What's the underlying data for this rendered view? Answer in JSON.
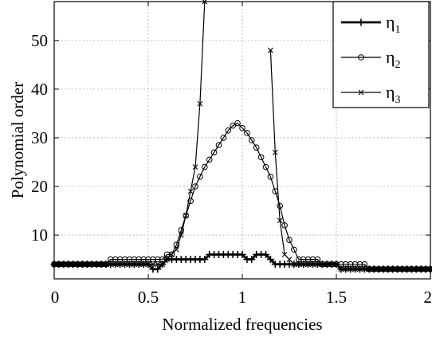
{
  "chart_data": {
    "type": "line",
    "xlabel": "Normalized frequencies",
    "ylabel": "Polynomial order",
    "xlim": [
      0,
      2
    ],
    "ylim": [
      1,
      58
    ],
    "xticks": [
      "0",
      "0.5",
      "1",
      "1.5",
      "2"
    ],
    "yticks": [
      "10",
      "20",
      "30",
      "40",
      "50"
    ],
    "xtick_values": [
      0,
      0.5,
      1,
      1.5,
      2
    ],
    "ytick_values": [
      10,
      20,
      30,
      40,
      50
    ],
    "grid": true,
    "legend_position": "top-right",
    "legend": [
      {
        "base": "η",
        "sub": "1"
      },
      {
        "base": "η",
        "sub": "2"
      },
      {
        "base": "η",
        "sub": "3"
      }
    ],
    "series": [
      {
        "id": "eta1",
        "marker": "plus",
        "line_width": 2.8,
        "x": [
          0,
          0.025,
          0.05,
          0.075,
          0.1,
          0.125,
          0.15,
          0.175,
          0.2,
          0.225,
          0.25,
          0.275,
          0.3,
          0.325,
          0.35,
          0.375,
          0.4,
          0.425,
          0.45,
          0.475,
          0.5,
          0.525,
          0.55,
          0.575,
          0.6,
          0.625,
          0.65,
          0.675,
          0.7,
          0.725,
          0.75,
          0.775,
          0.8,
          0.825,
          0.85,
          0.875,
          0.9,
          0.925,
          0.95,
          0.975,
          1.0,
          1.025,
          1.05,
          1.075,
          1.1,
          1.125,
          1.15,
          1.175,
          1.2,
          1.225,
          1.25,
          1.275,
          1.3,
          1.325,
          1.35,
          1.375,
          1.4,
          1.425,
          1.45,
          1.475,
          1.5,
          1.525,
          1.55,
          1.575,
          1.6,
          1.625,
          1.65,
          1.675,
          1.7,
          1.725,
          1.75,
          1.775,
          1.8,
          1.825,
          1.85,
          1.875,
          1.9,
          1.925,
          1.95,
          1.975,
          2.0
        ],
        "y": [
          4,
          4,
          4,
          4,
          4,
          4,
          4,
          4,
          4,
          4,
          4,
          4,
          4,
          4,
          4,
          4,
          4,
          4,
          4,
          4,
          4,
          3,
          3,
          4,
          5,
          5,
          5,
          5,
          5,
          5,
          5,
          5,
          5,
          6,
          6,
          6,
          6,
          6,
          6,
          6,
          6,
          5,
          5,
          6,
          6,
          6,
          5,
          4,
          4,
          4,
          4,
          4,
          4,
          4,
          4,
          4,
          4,
          4,
          4,
          4,
          4,
          3,
          3,
          3,
          3,
          3,
          3,
          3,
          3,
          3,
          3,
          3,
          3,
          3,
          3,
          3,
          3,
          3,
          3,
          3,
          3
        ]
      },
      {
        "id": "eta2",
        "marker": "circle",
        "line_width": 1.2,
        "x": [
          0,
          0.025,
          0.05,
          0.075,
          0.1,
          0.125,
          0.15,
          0.175,
          0.2,
          0.225,
          0.25,
          0.275,
          0.3,
          0.325,
          0.35,
          0.375,
          0.4,
          0.425,
          0.45,
          0.475,
          0.5,
          0.525,
          0.55,
          0.575,
          0.6,
          0.625,
          0.65,
          0.675,
          0.7,
          0.725,
          0.75,
          0.775,
          0.8,
          0.825,
          0.85,
          0.875,
          0.9,
          0.925,
          0.95,
          0.975,
          1.0,
          1.025,
          1.05,
          1.075,
          1.1,
          1.125,
          1.15,
          1.175,
          1.2,
          1.225,
          1.25,
          1.275,
          1.3,
          1.325,
          1.35,
          1.375,
          1.4,
          1.425,
          1.45,
          1.475,
          1.5,
          1.525,
          1.55,
          1.575,
          1.6,
          1.625,
          1.65,
          1.675,
          1.7,
          1.725,
          1.75,
          1.775,
          1.8,
          1.825,
          1.85,
          1.875,
          1.9,
          1.925,
          1.95,
          1.975,
          2.0
        ],
        "y": [
          4,
          4,
          4,
          4,
          4,
          4,
          4,
          4,
          4,
          4,
          4,
          4,
          5,
          5,
          5,
          5,
          5,
          5,
          5,
          5,
          5,
          5,
          5,
          5,
          6,
          6,
          8,
          11,
          14,
          17,
          20,
          22,
          24,
          25.5,
          27,
          28.5,
          30,
          31.5,
          32.5,
          33,
          32,
          31,
          29.5,
          28,
          26,
          24,
          22,
          19,
          16,
          12,
          9,
          7,
          5,
          5,
          5,
          5,
          5,
          4,
          4,
          4,
          4,
          4,
          4,
          4,
          4,
          4,
          4,
          3,
          3,
          3,
          3,
          3,
          3,
          3,
          3,
          3,
          3,
          3,
          3,
          3,
          3
        ]
      },
      {
        "id": "eta3",
        "marker": "x",
        "line_width": 1.2,
        "segments": [
          {
            "x": [
              0,
              0.025,
              0.05,
              0.075,
              0.1,
              0.125,
              0.15,
              0.175,
              0.2,
              0.225,
              0.25,
              0.275,
              0.3,
              0.325,
              0.35,
              0.375,
              0.4,
              0.425,
              0.45,
              0.475,
              0.5,
              0.525,
              0.55,
              0.575,
              0.6,
              0.625,
              0.65,
              0.675,
              0.7,
              0.725,
              0.75,
              0.775,
              0.8
            ],
            "y": [
              4,
              4,
              4,
              4,
              4,
              4,
              4,
              4,
              4,
              4,
              4,
              4,
              4,
              4,
              4,
              4,
              4,
              4,
              4,
              4,
              4,
              4,
              4,
              4,
              5,
              6,
              7,
              10,
              14,
              19,
              24,
              37,
              58
            ]
          },
          {
            "x": [
              1.15,
              1.175,
              1.2,
              1.225,
              1.25,
              1.275,
              1.3,
              1.325,
              1.35,
              1.375,
              1.4,
              1.425,
              1.45,
              1.475,
              1.5,
              1.525,
              1.55,
              1.575,
              1.6,
              1.625,
              1.65,
              1.675,
              1.7,
              1.725,
              1.75,
              1.775,
              1.8,
              1.825,
              1.85,
              1.875,
              1.9,
              1.925,
              1.95,
              1.975,
              2.0
            ],
            "y": [
              48,
              27,
              13,
              6,
              5,
              4,
              4,
              4,
              4,
              4,
              4,
              4,
              4,
              4,
              4,
              3,
              3,
              3,
              3,
              3,
              3,
              3,
              3,
              3,
              3,
              3,
              3,
              3,
              3,
              3,
              3,
              3,
              3,
              3,
              3
            ]
          }
        ]
      }
    ]
  }
}
